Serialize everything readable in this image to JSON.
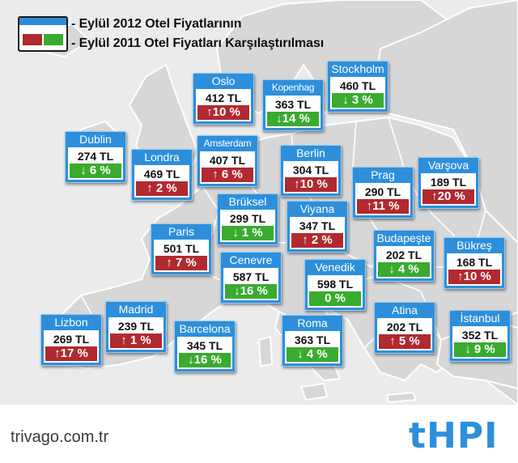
{
  "legend": {
    "line1": "- Eylül 2012 Otel Fiyatlarının",
    "line2": "- Eylül 2011 Otel Fiyatları Karşılaştırılması",
    "colors": {
      "increase": "#b02a2f",
      "decrease": "#3bab2f",
      "accent": "#2a8fd8"
    }
  },
  "cities": [
    {
      "id": "oslo",
      "name": "Oslo",
      "price": "412 TL",
      "change": "↑10 %",
      "direction": "up"
    },
    {
      "id": "kopenhag",
      "name": "Kopenhag",
      "price": "363 TL",
      "change": "↓14 %",
      "direction": "down"
    },
    {
      "id": "stockholm",
      "name": "Stockholm",
      "price": "460 TL",
      "change": "↓ 3 %",
      "direction": "down"
    },
    {
      "id": "dublin",
      "name": "Dublin",
      "price": "274 TL",
      "change": "↓ 6 %",
      "direction": "down"
    },
    {
      "id": "londra",
      "name": "Londra",
      "price": "469 TL",
      "change": "↑ 2 %",
      "direction": "up"
    },
    {
      "id": "amsterdam",
      "name": "Amsterdam",
      "price": "407 TL",
      "change": "↑ 6 %",
      "direction": "up"
    },
    {
      "id": "berlin",
      "name": "Berlin",
      "price": "304 TL",
      "change": "↑10 %",
      "direction": "up"
    },
    {
      "id": "prag",
      "name": "Prag",
      "price": "290 TL",
      "change": "↑11 %",
      "direction": "up"
    },
    {
      "id": "varsova",
      "name": "Varşova",
      "price": "189 TL",
      "change": "↑20 %",
      "direction": "up"
    },
    {
      "id": "bruksel",
      "name": "Brüksel",
      "price": "299 TL",
      "change": "↓ 1 %",
      "direction": "down"
    },
    {
      "id": "viyana",
      "name": "Viyana",
      "price": "347 TL",
      "change": "↑ 2 %",
      "direction": "up"
    },
    {
      "id": "paris",
      "name": "Paris",
      "price": "501 TL",
      "change": "↑ 7 %",
      "direction": "up"
    },
    {
      "id": "cenevre",
      "name": "Cenevre",
      "price": "587 TL",
      "change": "↓16 %",
      "direction": "down"
    },
    {
      "id": "budapeste",
      "name": "Budapeşte",
      "price": "202 TL",
      "change": "↓ 4 %",
      "direction": "down"
    },
    {
      "id": "bukres",
      "name": "Bükreş",
      "price": "168 TL",
      "change": "↑10 %",
      "direction": "up"
    },
    {
      "id": "venedik",
      "name": "Venedik",
      "price": "598 TL",
      "change": "0 %",
      "direction": "down"
    },
    {
      "id": "lizbon",
      "name": "Lizbon",
      "price": "269 TL",
      "change": "↑17 %",
      "direction": "up"
    },
    {
      "id": "madrid",
      "name": "Madrid",
      "price": "239 TL",
      "change": "↑ 1 %",
      "direction": "up"
    },
    {
      "id": "barcelona",
      "name": "Barcelona",
      "price": "345 TL",
      "change": "↓16 %",
      "direction": "down"
    },
    {
      "id": "roma",
      "name": "Roma",
      "price": "363 TL",
      "change": "↓ 4 %",
      "direction": "down"
    },
    {
      "id": "atina",
      "name": "Atina",
      "price": "202 TL",
      "change": "↑ 5 %",
      "direction": "up"
    },
    {
      "id": "istanbul",
      "name": "İstanbul",
      "price": "352 TL",
      "change": "↓ 9 %",
      "direction": "down"
    }
  ],
  "footer": {
    "site": "trivago.com.tr",
    "brand": "tHPI"
  }
}
